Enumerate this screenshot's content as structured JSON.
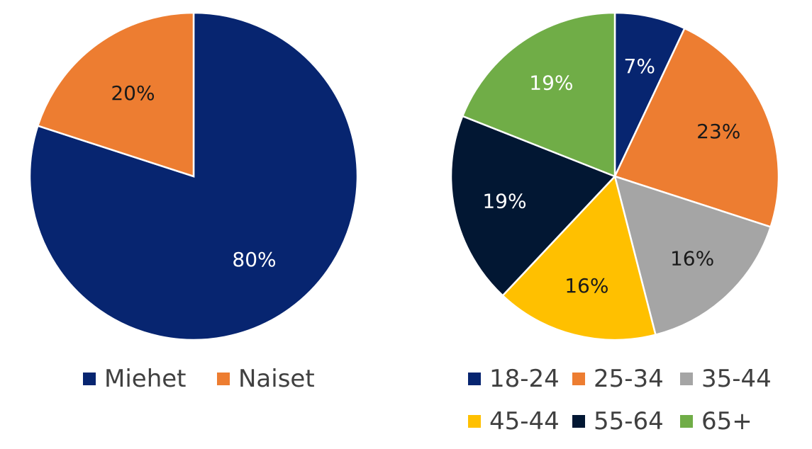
{
  "chart_data": [
    {
      "type": "pie",
      "title": "",
      "legend_position": "bottom",
      "slices": [
        {
          "label": "Miehet",
          "value": 80,
          "display": "80%",
          "color": "#072570",
          "label_color": "#ffffff"
        },
        {
          "label": "Naiset",
          "value": 20,
          "display": "20%",
          "color": "#ed7d31",
          "label_color": "#1a1a1a"
        }
      ]
    },
    {
      "type": "pie",
      "title": "",
      "legend_position": "bottom",
      "slices": [
        {
          "label": "18-24",
          "value": 7,
          "display": "7%",
          "color": "#072570",
          "label_color": "#ffffff"
        },
        {
          "label": "25-34",
          "value": 23,
          "display": "23%",
          "color": "#ed7d31",
          "label_color": "#1a1a1a"
        },
        {
          "label": "35-44",
          "value": 16,
          "display": "16%",
          "color": "#a5a5a5",
          "label_color": "#1a1a1a"
        },
        {
          "label": "45-44",
          "value": 16,
          "display": "16%",
          "color": "#ffc000",
          "label_color": "#1a1a1a"
        },
        {
          "label": "55-64",
          "value": 19,
          "display": "19%",
          "color": "#021733",
          "label_color": "#ffffff"
        },
        {
          "label": "65+",
          "value": 19,
          "display": "19%",
          "color": "#70ad47",
          "label_color": "#ffffff"
        }
      ]
    }
  ]
}
